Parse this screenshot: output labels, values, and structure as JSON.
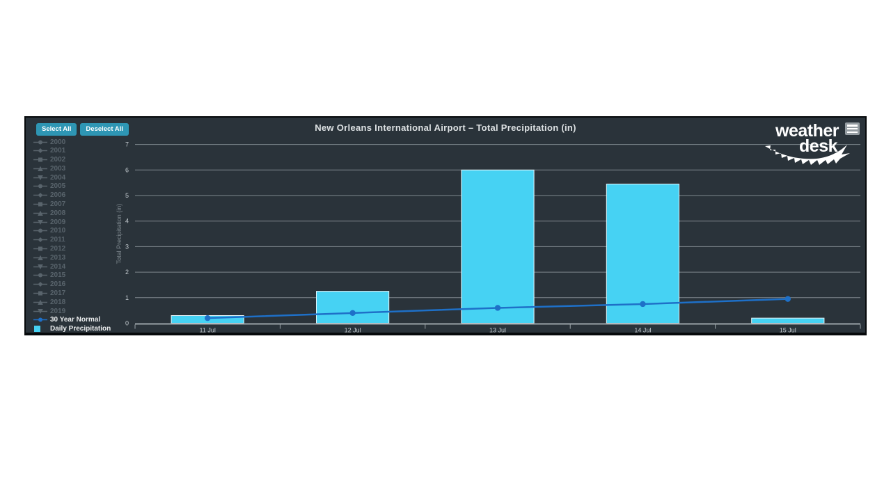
{
  "panel": {
    "buttons": [
      {
        "label": "Select All"
      },
      {
        "label": "Deselect All"
      }
    ],
    "logo": {
      "line1": "weather",
      "line2": "desk"
    },
    "menu_icon": "hamburger-menu-icon"
  },
  "colors": {
    "panel_bg": "#2a333a",
    "panel_border": "#06090b",
    "bar": "#46d2f3",
    "bar_border": "#e9f7fb",
    "line": "#1e70c8",
    "button_bg": "#2e96b4",
    "grid": "#7f888e",
    "axis": "#9aa3a8",
    "tick_label": "#c3cacf",
    "axis_title": "#7f898f",
    "legend_disabled": "#59646c",
    "legend_active": "#eceeef",
    "title": "#dde1e3",
    "logo": "#ffffff"
  },
  "legend": {
    "years": [
      {
        "label": "2000",
        "marker": "circle"
      },
      {
        "label": "2001",
        "marker": "diamond"
      },
      {
        "label": "2002",
        "marker": "square"
      },
      {
        "label": "2003",
        "marker": "triangle"
      },
      {
        "label": "2004",
        "marker": "triangle-down"
      },
      {
        "label": "2005",
        "marker": "circle"
      },
      {
        "label": "2006",
        "marker": "diamond"
      },
      {
        "label": "2007",
        "marker": "square"
      },
      {
        "label": "2008",
        "marker": "triangle"
      },
      {
        "label": "2009",
        "marker": "triangle-down"
      },
      {
        "label": "2010",
        "marker": "circle"
      },
      {
        "label": "2011",
        "marker": "diamond"
      },
      {
        "label": "2012",
        "marker": "square"
      },
      {
        "label": "2013",
        "marker": "triangle"
      },
      {
        "label": "2014",
        "marker": "triangle-down"
      },
      {
        "label": "2015",
        "marker": "circle"
      },
      {
        "label": "2016",
        "marker": "diamond"
      },
      {
        "label": "2017",
        "marker": "square"
      },
      {
        "label": "2018",
        "marker": "triangle"
      },
      {
        "label": "2019",
        "marker": "triangle-down"
      }
    ],
    "active_items": [
      {
        "label": "30 Year Normal",
        "marker": "circle",
        "type": "line"
      },
      {
        "label": "Daily Precipitation",
        "marker": "swatch",
        "type": "column"
      }
    ]
  },
  "chart_data": {
    "type": "bar",
    "title": "New Orleans International Airport – Total Precipitation (in)",
    "categories": [
      "11 Jul",
      "12 Jul",
      "13 Jul",
      "14 Jul",
      "15 Jul"
    ],
    "series": [
      {
        "name": "Daily Precipitation",
        "type": "bar",
        "values": [
          0.3,
          1.25,
          6.0,
          5.45,
          0.2
        ]
      },
      {
        "name": "30 Year Normal",
        "type": "line",
        "values": [
          0.2,
          0.4,
          0.6,
          0.75,
          0.95
        ]
      }
    ],
    "xlabel": "",
    "ylabel": "Total Precipitation (in)",
    "ylim": [
      0,
      7
    ],
    "yticks": [
      0,
      1,
      2,
      3,
      4,
      5,
      6,
      7
    ],
    "grid": true,
    "legend_position": "left"
  }
}
